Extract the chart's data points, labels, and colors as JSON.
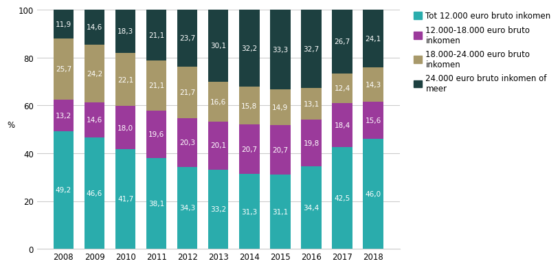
{
  "years": [
    "2008",
    "2009",
    "2010",
    "2011",
    "2012",
    "2013",
    "2014",
    "2015",
    "2016",
    "2017",
    "2018"
  ],
  "series": {
    "tot_12000": [
      49.2,
      46.6,
      41.7,
      38.1,
      34.3,
      33.2,
      31.3,
      31.1,
      34.4,
      42.5,
      46.0
    ],
    "s12000_18000": [
      13.2,
      14.6,
      18.0,
      19.6,
      20.3,
      20.1,
      20.7,
      20.7,
      19.8,
      18.4,
      15.6
    ],
    "s18000_24000": [
      25.7,
      24.2,
      22.1,
      21.1,
      21.7,
      16.6,
      15.8,
      14.9,
      13.1,
      12.4,
      14.3
    ],
    "meer_24000": [
      11.9,
      14.6,
      18.3,
      21.1,
      23.7,
      30.1,
      32.2,
      33.3,
      32.7,
      26.7,
      24.1
    ]
  },
  "colors": {
    "tot_12000": "#2AACAC",
    "s12000_18000": "#9B3A9B",
    "s18000_24000": "#A8996A",
    "meer_24000": "#1D4040"
  },
  "labels": {
    "tot_12000": "Tot 12.000 euro bruto inkomen",
    "s12000_18000": "12.000-18.000 euro bruto\ninkomen",
    "s18000_24000": "18.000-24.000 euro bruto\ninkomen",
    "meer_24000": "24.000 euro bruto inkomen of\nmeer"
  },
  "ylabel": "%",
  "ylim": [
    0,
    100
  ],
  "yticks": [
    0,
    20,
    40,
    60,
    80,
    100
  ],
  "bar_width": 0.65,
  "background_color": "#FFFFFF",
  "grid_color": "#CCCCCC",
  "label_fontsize": 7.5,
  "axis_fontsize": 8.5,
  "legend_fontsize": 8.5
}
